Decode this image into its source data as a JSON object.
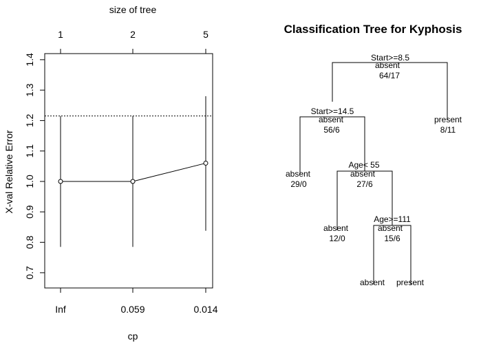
{
  "chart_data": [
    {
      "type": "line",
      "title": "",
      "top_axis_label": "size of tree",
      "top_tick_labels": [
        "1",
        "2",
        "5"
      ],
      "xlabel": "cp",
      "x_tick_labels": [
        "Inf",
        "0.059",
        "0.014"
      ],
      "ylabel": "X-val Relative Error",
      "ylim": [
        0.65,
        1.42
      ],
      "y_ticks": [
        0.7,
        0.8,
        0.9,
        1.0,
        1.1,
        1.2,
        1.3,
        1.4
      ],
      "y_tick_labels": [
        "0.7",
        "0.8",
        "0.9",
        "1.0",
        "1.1",
        "1.2",
        "1.3",
        "1.4"
      ],
      "points": [
        {
          "x_label": "Inf",
          "size": "1",
          "y": 1.0,
          "lower": 0.785,
          "upper": 1.215
        },
        {
          "x_label": "0.059",
          "size": "2",
          "y": 1.0,
          "lower": 0.785,
          "upper": 1.215
        },
        {
          "x_label": "0.014",
          "size": "5",
          "y": 1.06,
          "lower": 0.838,
          "upper": 1.28
        }
      ],
      "reference_line": {
        "y": 1.215,
        "style": "dotted"
      },
      "grid": false
    },
    {
      "type": "tree",
      "title": "Classification Tree for Kyphosis",
      "nodes": [
        {
          "id": "root",
          "split": "Start>=8.5",
          "class": "absent",
          "counts": "64/17"
        },
        {
          "id": "n2",
          "split": "Start>=14.5",
          "class": "absent",
          "counts": "56/6"
        },
        {
          "id": "n3",
          "split": "",
          "class": "present",
          "counts": "8/11"
        },
        {
          "id": "n4",
          "split": "",
          "class": "absent",
          "counts": "29/0"
        },
        {
          "id": "n5",
          "split": "Age< 55",
          "class": "absent",
          "counts": "27/6"
        },
        {
          "id": "n10",
          "split": "",
          "class": "absent",
          "counts": "12/0"
        },
        {
          "id": "n11",
          "split": "Age>=111",
          "class": "absent",
          "counts": "15/6"
        },
        {
          "id": "n22",
          "split": "",
          "class": "absent",
          "counts": ""
        },
        {
          "id": "n23",
          "split": "",
          "class": "present",
          "counts": ""
        }
      ]
    }
  ]
}
